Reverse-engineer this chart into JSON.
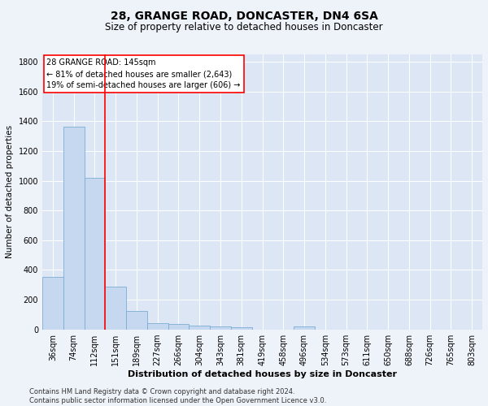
{
  "title": "28, GRANGE ROAD, DONCASTER, DN4 6SA",
  "subtitle": "Size of property relative to detached houses in Doncaster",
  "xlabel": "Distribution of detached houses by size in Doncaster",
  "ylabel": "Number of detached properties",
  "categories": [
    "36sqm",
    "74sqm",
    "112sqm",
    "151sqm",
    "189sqm",
    "227sqm",
    "266sqm",
    "304sqm",
    "343sqm",
    "381sqm",
    "419sqm",
    "458sqm",
    "496sqm",
    "534sqm",
    "573sqm",
    "611sqm",
    "650sqm",
    "688sqm",
    "726sqm",
    "765sqm",
    "803sqm"
  ],
  "values": [
    355,
    1365,
    1020,
    290,
    125,
    42,
    35,
    28,
    20,
    15,
    0,
    0,
    20,
    0,
    0,
    0,
    0,
    0,
    0,
    0,
    0
  ],
  "bar_color": "#c5d8ef",
  "bar_edge_color": "#7aadd4",
  "vline_color": "red",
  "annotation_line1": "28 GRANGE ROAD: 145sqm",
  "annotation_line2": "← 81% of detached houses are smaller (2,643)",
  "annotation_line3": "19% of semi-detached houses are larger (606) →",
  "annotation_box_color": "white",
  "annotation_box_edge": "red",
  "ylim": [
    0,
    1850
  ],
  "yticks": [
    0,
    200,
    400,
    600,
    800,
    1000,
    1200,
    1400,
    1600,
    1800
  ],
  "footer": "Contains HM Land Registry data © Crown copyright and database right 2024.\nContains public sector information licensed under the Open Government Licence v3.0.",
  "bg_color": "#eef2f9",
  "plot_bg_color": "#dce6f4",
  "title_fontsize": 10,
  "subtitle_fontsize": 8.5,
  "xlabel_fontsize": 8,
  "ylabel_fontsize": 7.5,
  "tick_fontsize": 7,
  "annotation_fontsize": 7,
  "footer_fontsize": 6
}
